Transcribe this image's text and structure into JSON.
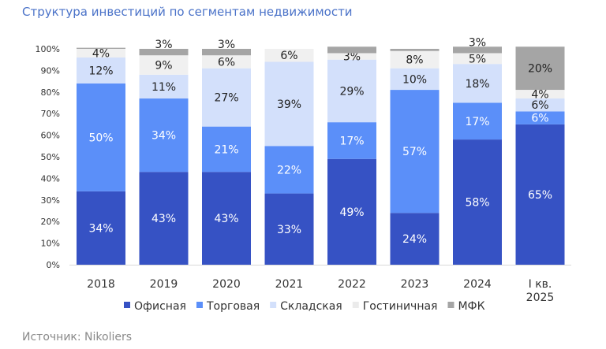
{
  "chart_data": {
    "type": "bar",
    "stacked": true,
    "title": "Структура инвестиций по сегментам недвижимости",
    "source": "Источник: Nikoliers",
    "categories": [
      "2018",
      "2019",
      "2020",
      "2021",
      "2022",
      "2023",
      "2024",
      "I кв.\n2025"
    ],
    "ylim": [
      0,
      100
    ],
    "yticks": [
      "0%",
      "10%",
      "20%",
      "30%",
      "40%",
      "50%",
      "60%",
      "70%",
      "80%",
      "90%",
      "100%"
    ],
    "legend_position": "bottom",
    "series": [
      {
        "name": "Офисная",
        "color": "#3652c4",
        "values": [
          34,
          43,
          43,
          33,
          49,
          24,
          58,
          65
        ],
        "labels": [
          "34%",
          "43%",
          "43%",
          "33%",
          "49%",
          "24%",
          "58%",
          "65%"
        ]
      },
      {
        "name": "Торговая",
        "color": "#5b8ff9",
        "values": [
          50,
          34,
          21,
          22,
          17,
          57,
          17,
          6
        ],
        "labels": [
          "50%",
          "34%",
          "21%",
          "22%",
          "17%",
          "57%",
          "17%",
          "6%"
        ]
      },
      {
        "name": "Складская",
        "color": "#d3e0fb",
        "values": [
          12,
          11,
          27,
          39,
          29,
          10,
          18,
          6
        ],
        "labels": [
          "12%",
          "11%",
          "27%",
          "39%",
          "29%",
          "10%",
          "18%",
          "6%"
        ]
      },
      {
        "name": "Гостиничная",
        "color": "#f0f0f0",
        "values": [
          4,
          9,
          6,
          6,
          3,
          8,
          5,
          4
        ],
        "labels": [
          "4%",
          "9%",
          "6%",
          "6%",
          "3%",
          "8%",
          "5%",
          "4%"
        ]
      },
      {
        "name": "МФК",
        "color": "#a5a5a5",
        "values": [
          0.5,
          3,
          3,
          0,
          3,
          1,
          3,
          20
        ],
        "labels": [
          "",
          "3%",
          "3%",
          "",
          "",
          "",
          "3%",
          "20%"
        ]
      }
    ]
  }
}
